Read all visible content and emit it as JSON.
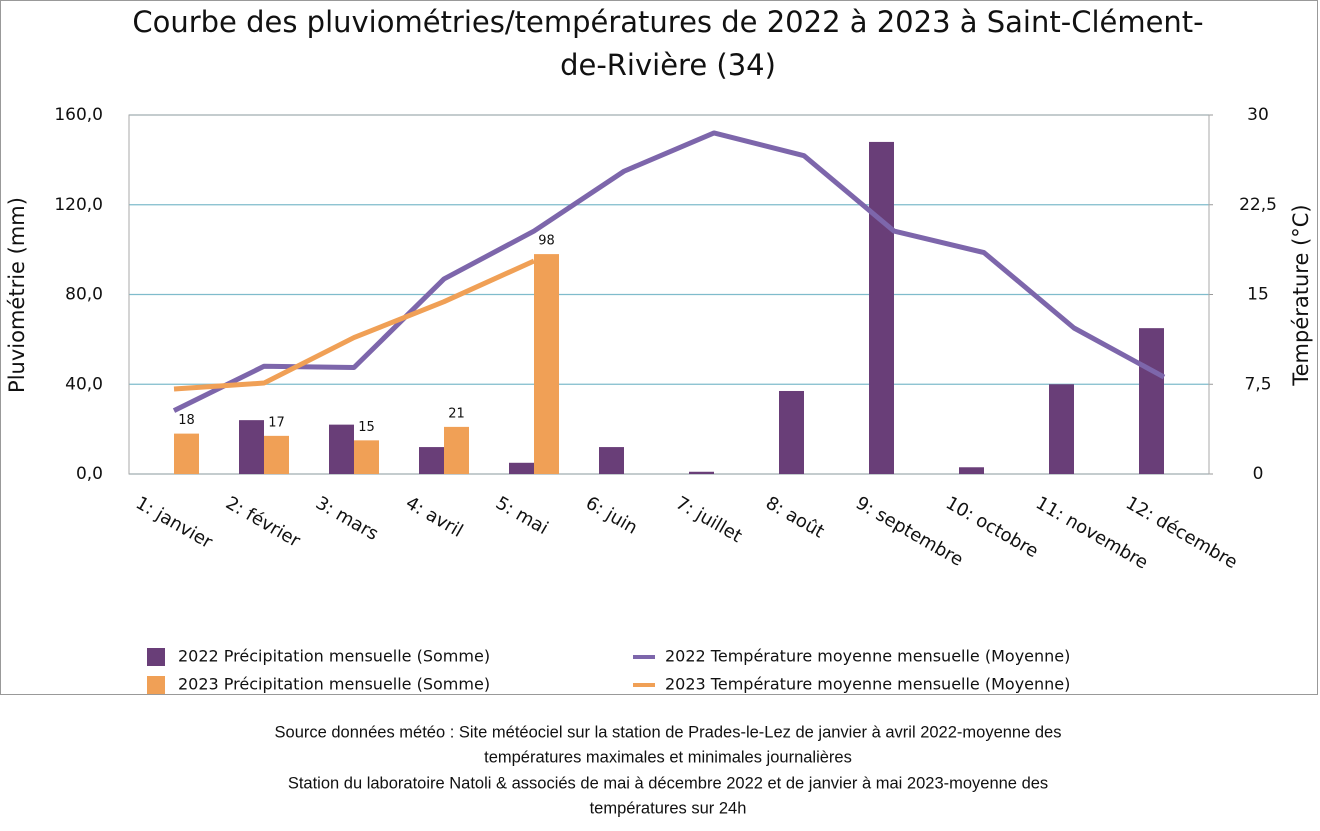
{
  "chart_data": {
    "type": "combo",
    "title": [
      "Courbe des pluviométries/températures de 2022 à 2023 à Saint-Clément-",
      "de-Rivière (34)"
    ],
    "y_label": "Pluviométrie (mm)",
    "y2_label": "Température (°C)",
    "categories": [
      "1: janvier",
      "2: février",
      "3: mars",
      "4: avril",
      "5: mai",
      "6: juin",
      "7: juillet",
      "8: août",
      "9: septembre",
      "10: octobre",
      "11: novembre",
      "12: décembre"
    ],
    "ylim": [
      0,
      160
    ],
    "yticks": [
      {
        "value": 0,
        "label": "0,0"
      },
      {
        "value": 40,
        "label": "40,0"
      },
      {
        "value": 80,
        "label": "80,0"
      },
      {
        "value": 120,
        "label": "120,0"
      },
      {
        "value": 160,
        "label": "160,0"
      }
    ],
    "y2lim": [
      0,
      30
    ],
    "y2ticks": [
      0,
      {
        "value": 7.5,
        "label": "7,5"
      },
      15,
      {
        "value": 22.5,
        "label": "22,5"
      },
      30
    ],
    "grid": true,
    "series": [
      {
        "name": "2022 Précipitation mensuelle (Somme)",
        "type": "bar",
        "color": "#693e78",
        "values": [
          0,
          24,
          22,
          12,
          5,
          12,
          1,
          37,
          148,
          3,
          40,
          65
        ]
      },
      {
        "name": "2023 Précipitation mensuelle (Somme)",
        "type": "bar",
        "color": "#f0a056",
        "data_labels": true,
        "values": [
          18,
          17,
          15,
          21,
          98,
          null,
          null,
          null,
          null,
          null,
          null,
          null
        ]
      },
      {
        "name": "2022 Température moyenne mensuelle (Moyenne)",
        "type": "line",
        "axis": "y2",
        "color": "#7d66ab",
        "values": [
          5.3,
          9.0,
          8.9,
          16.3,
          20.3,
          25.3,
          28.5,
          26.6,
          20.3,
          18.5,
          12.2,
          8.1
        ]
      },
      {
        "name": "2023 Température moyenne mensuelle (Moyenne)",
        "type": "line",
        "axis": "y2",
        "color": "#f0a056",
        "values": [
          7.1,
          7.6,
          11.4,
          14.4,
          17.8,
          null,
          null,
          null,
          null,
          null,
          null,
          null
        ]
      }
    ],
    "notes": [
      "Source données météo : Site météociel sur la station de Prades-le-Lez de janvier à avril 2022-moyenne des",
      "températures maximales et minimales journalières",
      "Station du laboratoire Natoli & associés  de mai à décembre 2022 et de janvier à mai 2023-moyenne des",
      "températures sur 24h"
    ]
  }
}
